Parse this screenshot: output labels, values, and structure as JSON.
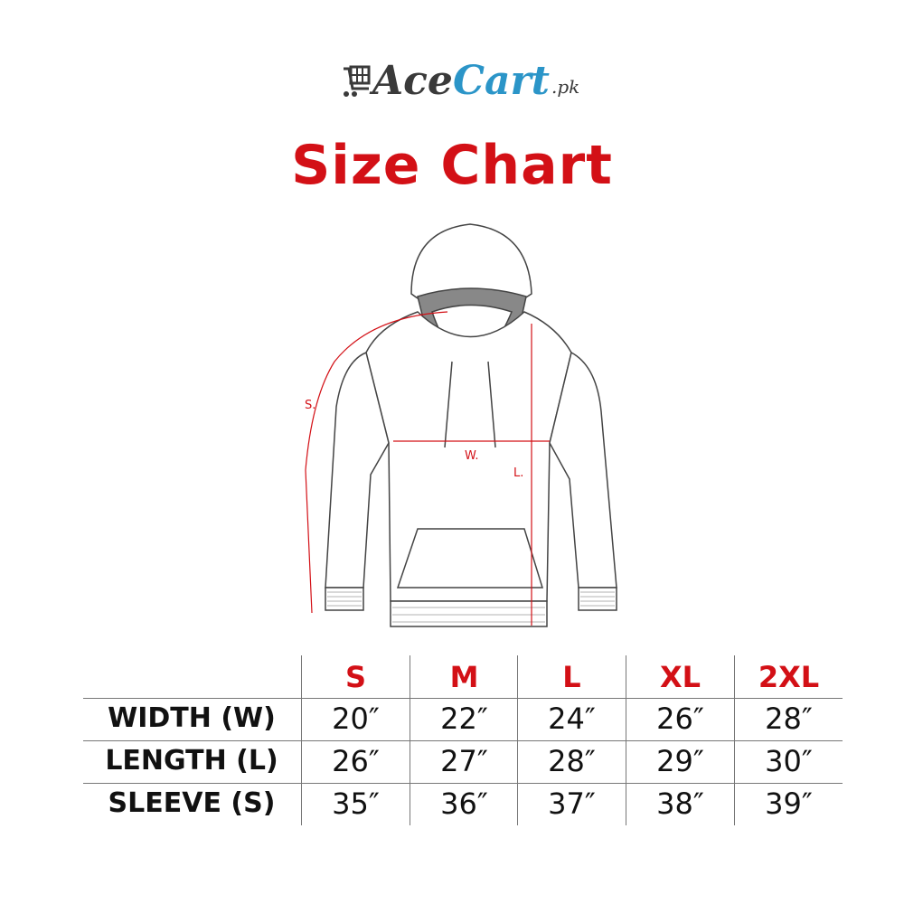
{
  "logo": {
    "part1": "Ace",
    "part2": "Cart",
    "suffix": ".pk",
    "icon": "shopping-cart-icon",
    "colors": {
      "dark": "#3a3a3a",
      "blue": "#2b95c8"
    }
  },
  "title": "Size Chart",
  "diagram": {
    "labels": {
      "sleeve": "S.",
      "width": "W.",
      "length": "L."
    },
    "accent": "#d31016"
  },
  "table": {
    "sizes": [
      "S",
      "M",
      "L",
      "XL",
      "2XL"
    ],
    "rows": [
      {
        "label": "WIDTH (W)",
        "values": [
          "20″",
          "22″",
          "24″",
          "26″",
          "28″"
        ]
      },
      {
        "label": "LENGTH (L)",
        "values": [
          "26″",
          "27″",
          "28″",
          "29″",
          "30″"
        ]
      },
      {
        "label": "SLEEVE (S)",
        "values": [
          "35″",
          "36″",
          "37″",
          "38″",
          "39″"
        ]
      }
    ]
  }
}
